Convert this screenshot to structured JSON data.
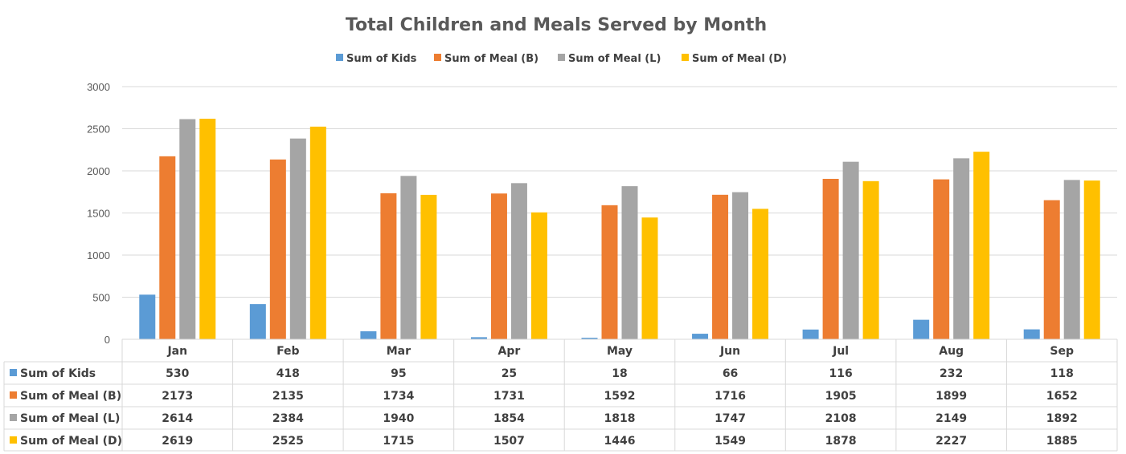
{
  "chart_data": {
    "type": "bar",
    "title": "Total Children and Meals Served by Month",
    "categories": [
      "Jan",
      "Feb",
      "Mar",
      "Apr",
      "May",
      "Jun",
      "Jul",
      "Aug",
      "Sep"
    ],
    "series": [
      {
        "name": "Sum of Kids",
        "color": "#5B9BD5",
        "values": [
          530,
          418,
          95,
          25,
          18,
          66,
          116,
          232,
          118
        ]
      },
      {
        "name": "Sum of Meal (B)",
        "color": "#ED7D31",
        "values": [
          2173,
          2135,
          1734,
          1731,
          1592,
          1716,
          1905,
          1899,
          1652
        ]
      },
      {
        "name": "Sum of Meal (L)",
        "color": "#A5A5A5",
        "values": [
          2614,
          2384,
          1940,
          1854,
          1818,
          1747,
          2108,
          2149,
          1892
        ]
      },
      {
        "name": "Sum of Meal (D)",
        "color": "#FFC000",
        "values": [
          2619,
          2525,
          1715,
          1507,
          1446,
          1549,
          1878,
          2227,
          1885
        ]
      }
    ],
    "ylim": [
      0,
      3000
    ],
    "yticks": [
      0,
      500,
      1000,
      1500,
      2000,
      2500,
      3000
    ],
    "grid": true,
    "legend": "top-center",
    "data_table": true
  }
}
